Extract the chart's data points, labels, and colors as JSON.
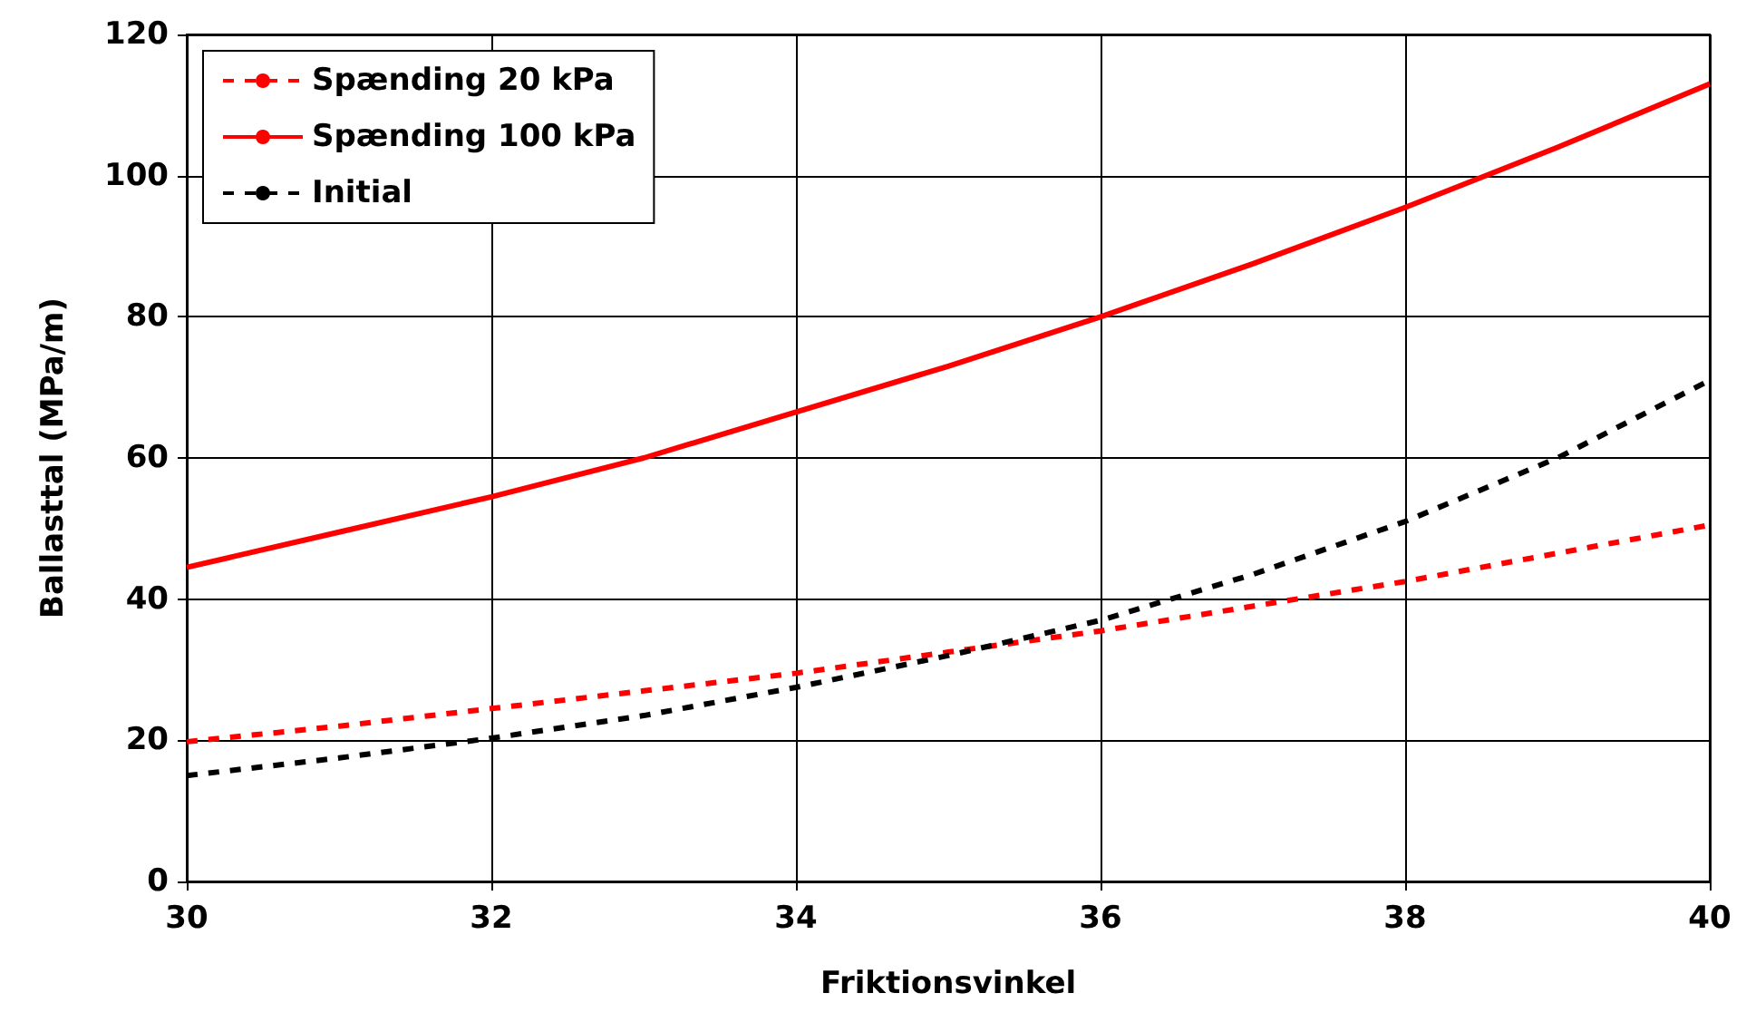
{
  "chart_data": {
    "type": "line",
    "xlabel": "Friktionsvinkel",
    "ylabel": "Ballasttal (MPa/m)",
    "x": [
      30,
      31,
      32,
      33,
      34,
      35,
      36,
      37,
      38,
      39,
      40
    ],
    "series": [
      {
        "name": "Spænding 20 kPa",
        "color": "#ff0000",
        "line_style": "dashed",
        "values": [
          19.8,
          22,
          24.5,
          27,
          29.5,
          32.5,
          35.5,
          39,
          42.5,
          46.5,
          50.5
        ]
      },
      {
        "name": "Spænding 100 kPa",
        "color": "#ff0000",
        "line_style": "solid",
        "values": [
          44.5,
          49.5,
          54.5,
          60,
          66.5,
          73,
          80,
          87.5,
          95.5,
          104,
          113
        ]
      },
      {
        "name": "Initial",
        "color": "#000000",
        "line_style": "dashed",
        "values": [
          15,
          17.5,
          20.3,
          23.5,
          27.5,
          32,
          37,
          43.5,
          51,
          60,
          71
        ]
      }
    ],
    "xlim": [
      30,
      40
    ],
    "xticks": [
      30,
      32,
      34,
      36,
      38,
      40
    ],
    "ylim": [
      0,
      120
    ],
    "yticks": [
      0,
      20,
      40,
      60,
      80,
      100,
      120
    ],
    "grid": true,
    "legend": "top left",
    "marker": "none"
  }
}
